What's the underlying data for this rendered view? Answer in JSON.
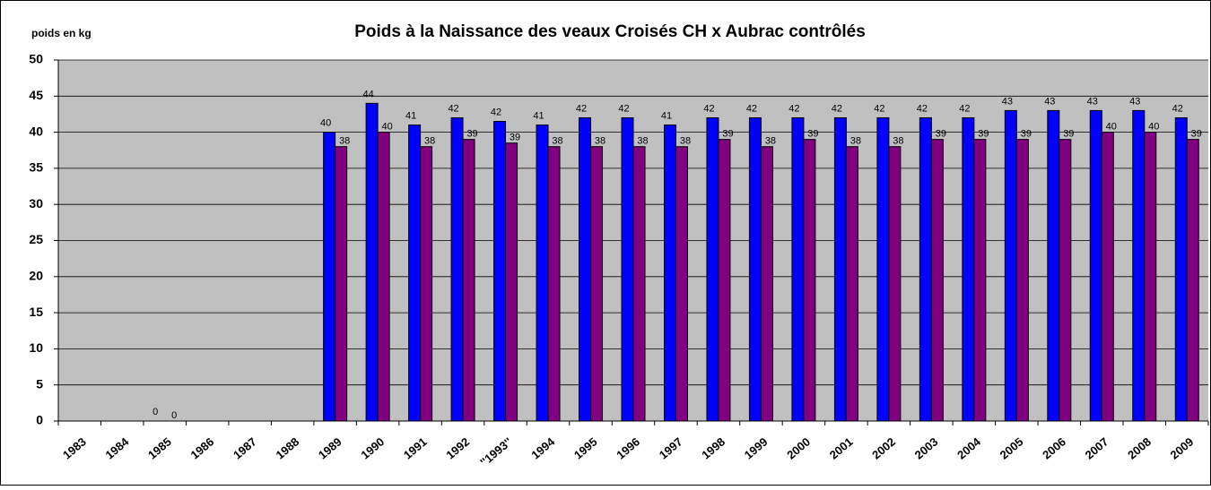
{
  "chart_data": {
    "type": "bar",
    "title": "Poids à la Naissance des veaux Croisés CH x Aubrac contrôlés",
    "y_label": "poids en kg",
    "categories": [
      "1983",
      "1984",
      "1985",
      "1986",
      "1987",
      "1988",
      "1989",
      "1990",
      "1991",
      "1992",
      "''1993''",
      "1994",
      "1995",
      "1996",
      "1997",
      "1998",
      "1999",
      "2000",
      "2001",
      "2002",
      "2003",
      "2004",
      "2005",
      "2006",
      "2007",
      "2008",
      "2009"
    ],
    "series": [
      {
        "color": "#0000ff",
        "values": [
          null,
          null,
          0,
          null,
          null,
          null,
          40,
          44,
          41,
          42,
          41.5,
          41,
          42,
          42,
          41,
          42,
          42,
          42,
          42,
          42,
          42,
          42,
          43,
          43,
          43,
          43,
          42
        ],
        "value_labels": [
          null,
          null,
          "0",
          null,
          null,
          null,
          "40",
          "44",
          "41",
          "42",
          "42",
          "41",
          "42",
          "42",
          "41",
          "42",
          "42",
          "42",
          "42",
          "42",
          "42",
          "42",
          "43",
          "43",
          "43",
          "43",
          "42"
        ]
      },
      {
        "color": "#800080",
        "values": [
          null,
          null,
          0,
          null,
          null,
          null,
          38,
          40,
          38,
          39,
          38.5,
          38,
          38,
          38,
          38,
          39,
          38,
          39,
          38,
          38,
          39,
          39,
          39,
          39,
          40,
          40,
          39
        ],
        "value_labels": [
          null,
          null,
          "0",
          null,
          null,
          null,
          "38",
          "40",
          "38",
          "39",
          "39",
          "38",
          "38",
          "38",
          "38",
          "39",
          "38",
          "39",
          "38",
          "38",
          "39",
          "39",
          "39",
          "39",
          "40",
          "40",
          "39"
        ]
      }
    ],
    "ylim": [
      0,
      50
    ],
    "yticks": [
      0,
      5,
      10,
      15,
      20,
      25,
      30,
      35,
      40,
      45,
      50
    ],
    "grid": true,
    "plot_background": "#c0c0c0"
  }
}
